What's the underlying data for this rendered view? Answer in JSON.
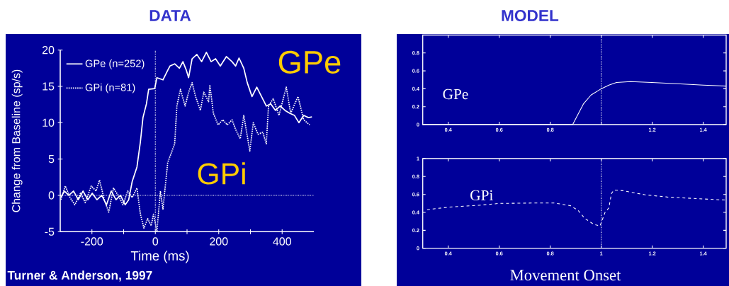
{
  "chart_data": [
    {
      "type": "line",
      "title": "DATA",
      "xlabel": "Time (ms)",
      "ylabel": "Change from Baseline (sp/s)",
      "xlim": [
        -300,
        500
      ],
      "ylim": [
        -5,
        20
      ],
      "xticks": [
        -200,
        {
          "value": -100,
          "label": null
        },
        0,
        {
          "value": 100,
          "label": null
        },
        200,
        {
          "value": 300,
          "label": null
        },
        400
      ],
      "yticks": [
        -5,
        0,
        5,
        10,
        15,
        20
      ],
      "legend": "top left",
      "ref_lines": [
        {
          "axis": "y",
          "value": 0,
          "line_style": "dotted"
        },
        {
          "axis": "x",
          "value": 0,
          "line_style": "dotted"
        }
      ],
      "annotations": [
        "GPe",
        "GPi",
        "Turner & Anderson, 1997"
      ],
      "series": [
        {
          "name": "GPe (n=252)",
          "color": "#ffffff",
          "line_style": "solid",
          "x": [
            -298,
            -287,
            -273,
            -258,
            -243,
            -228,
            -213,
            -199,
            -184,
            -169,
            -154,
            -139,
            -124,
            -110,
            -95,
            -84,
            -73,
            -58,
            -47,
            -39,
            -28,
            -21,
            -2,
            5,
            24,
            39,
            46,
            61,
            76,
            87,
            98,
            105,
            116,
            131,
            146,
            161,
            176,
            190,
            205,
            224,
            242,
            253,
            264,
            279,
            290,
            305,
            320,
            335,
            350,
            364,
            379,
            394,
            409,
            424,
            439,
            453,
            468,
            483,
            494
          ],
          "values": [
            -0.3,
            0.6,
            0,
            0.6,
            -0.6,
            0.6,
            -0.6,
            0.3,
            -0.6,
            0,
            -1.3,
            0.6,
            -0.6,
            0,
            -1.3,
            -0.6,
            1.9,
            3.9,
            7.4,
            10.7,
            12.6,
            14.6,
            14.7,
            16.2,
            15.9,
            17.2,
            17.8,
            18.1,
            17.5,
            18.4,
            17.2,
            16.2,
            18.8,
            19.4,
            18.4,
            19.7,
            18.4,
            18.8,
            17.8,
            19.1,
            18.4,
            17.8,
            18.9,
            17.5,
            15.5,
            13.6,
            14.9,
            13.6,
            12.3,
            12.6,
            11.7,
            12.3,
            11.7,
            11.3,
            11,
            10,
            11,
            10.7,
            10.8
          ]
        },
        {
          "name": "GPi (n=81)",
          "color": "#ffffff",
          "line_style": "dotted",
          "x": [
            -298,
            -284,
            -269,
            -254,
            -236,
            -221,
            -202,
            -187,
            -176,
            -161,
            -147,
            -132,
            -117,
            -102,
            -87,
            -73,
            -58,
            -47,
            -36,
            -24,
            -13,
            -6,
            5,
            16,
            24,
            39,
            61,
            68,
            79,
            94,
            105,
            116,
            127,
            142,
            153,
            168,
            172,
            183,
            198,
            213,
            227,
            242,
            253,
            268,
            279,
            298,
            309,
            324,
            339,
            350,
            357,
            372,
            390,
            413,
            427,
            450,
            468,
            487
          ],
          "values": [
            -0.6,
            1.3,
            -0.3,
            -1.3,
            0.3,
            -1,
            1.3,
            0.6,
            2.1,
            -0.6,
            -2.3,
            1,
            0,
            -1.3,
            0.6,
            -0.3,
            1,
            -2.6,
            -4.5,
            -3.2,
            -4.2,
            -2.6,
            -4.9,
            0.6,
            -1.9,
            4.5,
            7.1,
            12.3,
            14.6,
            12.3,
            14.2,
            15.5,
            13.6,
            11.7,
            14.2,
            12.9,
            15.2,
            11.3,
            9.7,
            10.4,
            9.7,
            10.4,
            9.1,
            7.8,
            11,
            6.1,
            10,
            8.4,
            8.7,
            7.1,
            12.3,
            13.3,
            11,
            14.9,
            11.3,
            13.6,
            10.4,
            9.7
          ]
        }
      ]
    },
    {
      "type": "line",
      "title": "MODEL",
      "xlim": [
        0.3,
        1.49
      ],
      "ylim": [
        0,
        1
      ],
      "xticks": [
        0.4,
        0.6,
        0.8,
        {
          "value": 1,
          "label": null
        },
        1.2,
        1.4
      ],
      "yticks": [
        0,
        0.2,
        0.4,
        0.6,
        0.8
      ],
      "ref_lines": [
        {
          "axis": "x",
          "value": 1,
          "line_style": "dotted"
        }
      ],
      "annotations": [
        "GPe"
      ],
      "series": [
        {
          "color": "#ffffff",
          "line_style": "solid",
          "x": [
            0.3,
            0.6,
            0.888,
            0.91,
            0.93,
            0.96,
            1.0,
            1.03,
            1.06,
            1.115,
            1.198,
            1.31,
            1.4,
            1.49
          ],
          "values": [
            0,
            0,
            0,
            0.12,
            0.23,
            0.33,
            0.4,
            0.44,
            0.47,
            0.48,
            0.47,
            0.455,
            0.44,
            0.43
          ]
        }
      ]
    },
    {
      "type": "line",
      "xlabel": "Movement Onset",
      "xlim": [
        0.3,
        1.49
      ],
      "ylim": [
        0,
        1
      ],
      "xticks": [
        0.4,
        0.6,
        0.8,
        1,
        1.2,
        1.4
      ],
      "yticks": [
        0,
        0.2,
        0.4,
        0.6,
        0.8,
        1
      ],
      "ref_lines": [
        {
          "axis": "x",
          "value": 1,
          "line_style": "dotted"
        }
      ],
      "annotations": [
        "GPi"
      ],
      "series": [
        {
          "color": "#ffffff",
          "line_style": "dashed",
          "x": [
            0.317,
            0.4,
            0.52,
            0.6,
            0.75,
            0.815,
            0.88,
            0.91,
            0.935,
            0.97,
            0.995,
            1.015,
            1.03,
            1.04,
            1.05,
            1.085,
            1.17,
            1.26,
            1.4,
            1.49
          ],
          "values": [
            0.43,
            0.458,
            0.479,
            0.5,
            0.505,
            0.505,
            0.474,
            0.42,
            0.334,
            0.268,
            0.247,
            0.4,
            0.45,
            0.61,
            0.65,
            0.642,
            0.597,
            0.571,
            0.55,
            0.537
          ]
        }
      ]
    }
  ]
}
